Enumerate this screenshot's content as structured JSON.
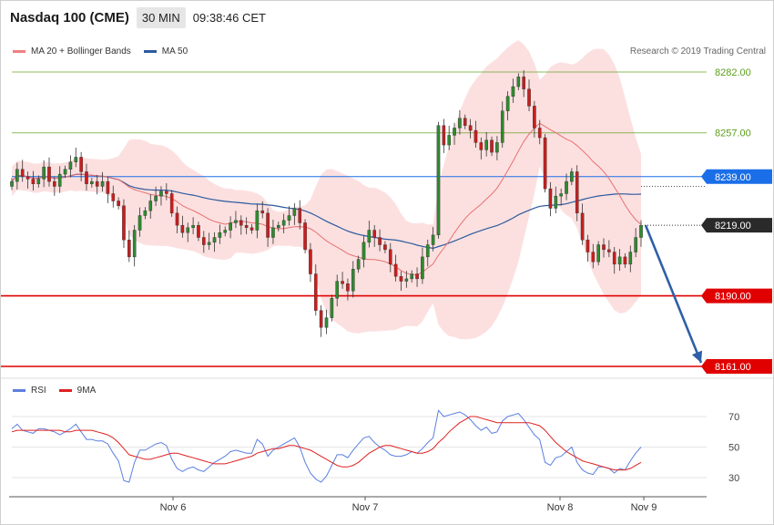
{
  "header": {
    "title": "Nasdaq 100 (CME)",
    "timeframe": "30 MIN",
    "time": "09:38:46 CET"
  },
  "legend": [
    {
      "label": "MA 20 + Bollinger Bands",
      "color": "#f08080"
    },
    {
      "label": "MA 50",
      "color": "#2c5a9e"
    }
  ],
  "copyright": "Research © 2019 Trading Central",
  "rsi_legend": [
    {
      "label": "RSI",
      "color": "#5b7fe0"
    },
    {
      "label": "9MA",
      "color": "#e02020"
    }
  ],
  "price_levels": [
    {
      "label": "8282.00",
      "value": 8282,
      "color": "#5a9e1a",
      "kind": "green",
      "badge": false
    },
    {
      "label": "8257.00",
      "value": 8257,
      "color": "#5a9e1a",
      "kind": "green",
      "badge": false
    },
    {
      "label": "8239.00",
      "value": 8239,
      "color": "#1a6fe8",
      "kind": "blue",
      "badge": true
    },
    {
      "label": "8219.00",
      "value": 8219,
      "color": "#2a2a2a",
      "kind": "current",
      "badge": true
    },
    {
      "label": "8190.00",
      "value": 8190,
      "color": "#e00000",
      "kind": "red",
      "badge": true
    },
    {
      "label": "8161.00",
      "value": 8161,
      "color": "#e00000",
      "kind": "red",
      "badge": true
    }
  ],
  "rsi_ticks": [
    "70",
    "50",
    "30"
  ],
  "x_labels": [
    "Nov 6",
    "Nov 7",
    "Nov 8",
    "Nov 9"
  ],
  "chart_data": {
    "type": "candlestick",
    "ylim": [
      8160,
      8290
    ],
    "rsi_ylim": [
      20,
      80
    ],
    "x_labels": [
      "Nov 6",
      "Nov 7",
      "Nov 8",
      "Nov 9"
    ],
    "projection": {
      "from": 8219,
      "to": 8161
    },
    "closes": [
      8237,
      8242,
      8239,
      8238,
      8236,
      8238,
      8243,
      8237,
      8235,
      8240,
      8242,
      8245,
      8247,
      8241,
      8236,
      8237,
      8235,
      8237,
      8232,
      8229,
      8227,
      8213,
      8206,
      8217,
      8223,
      8225,
      8229,
      8231,
      8233,
      8232,
      8224,
      8219,
      8216,
      8218,
      8219,
      8214,
      8211,
      8212,
      8214,
      8216,
      8217,
      8220,
      8221,
      8219,
      8218,
      8217,
      8225,
      8224,
      8214,
      8218,
      8219,
      8221,
      8223,
      8226,
      8220,
      8209,
      8199,
      8184,
      8177,
      8181,
      8189,
      8196,
      8195,
      8192,
      8201,
      8205,
      8212,
      8217,
      8214,
      8211,
      8209,
      8203,
      8198,
      8196,
      8197,
      8199,
      8197,
      8206,
      8211,
      8215,
      8260,
      8252,
      8256,
      8259,
      8263,
      8260,
      8258,
      8253,
      8250,
      8254,
      8249,
      8253,
      8266,
      8272,
      8276,
      8280,
      8275,
      8268,
      8259,
      8255,
      8234,
      8226,
      8231,
      8232,
      8237,
      8241,
      8224,
      8213,
      8208,
      8204,
      8211,
      8209,
      8208,
      8203,
      8206,
      8203,
      8208,
      8214,
      8219
    ],
    "rsi": [
      62,
      65,
      61,
      60,
      59,
      62,
      62,
      61,
      60,
      58,
      60,
      62,
      65,
      60,
      55,
      55,
      54,
      54,
      52,
      46,
      41,
      28,
      27,
      40,
      48,
      48,
      50,
      52,
      53,
      51,
      42,
      36,
      34,
      36,
      37,
      35,
      34,
      37,
      40,
      42,
      44,
      47,
      48,
      47,
      46,
      46,
      55,
      52,
      44,
      48,
      50,
      52,
      54,
      56,
      50,
      40,
      33,
      29,
      27,
      31,
      38,
      45,
      45,
      43,
      48,
      52,
      56,
      57,
      53,
      50,
      48,
      45,
      44,
      44,
      45,
      47,
      46,
      49,
      53,
      56,
      74,
      70,
      71,
      72,
      73,
      71,
      68,
      64,
      61,
      63,
      59,
      60,
      67,
      70,
      71,
      72,
      68,
      63,
      58,
      55,
      40,
      38,
      43,
      44,
      47,
      50,
      40,
      35,
      33,
      32,
      37,
      37,
      36,
      33,
      36,
      35,
      41,
      46,
      50
    ],
    "rsi_ma": [
      60,
      61,
      61,
      61,
      61,
      61,
      61,
      61,
      61,
      61,
      60,
      60,
      61,
      61,
      61,
      61,
      60,
      59,
      58,
      56,
      53,
      49,
      45,
      44,
      43,
      42,
      42,
      43,
      44,
      45,
      46,
      46,
      45,
      44,
      43,
      42,
      41,
      40,
      39,
      39,
      39,
      40,
      41,
      42,
      43,
      44,
      46,
      47,
      48,
      49,
      49,
      50,
      51,
      51,
      50,
      49,
      48,
      46,
      44,
      42,
      40,
      38,
      37,
      37,
      38,
      40,
      43,
      46,
      48,
      50,
      51,
      51,
      50,
      49,
      48,
      47,
      46,
      46,
      47,
      49,
      53,
      56,
      60,
      63,
      66,
      68,
      70,
      70,
      69,
      68,
      67,
      66,
      66,
      66,
      66,
      66,
      66,
      66,
      65,
      64,
      61,
      57,
      53,
      50,
      47,
      45,
      43,
      41,
      40,
      39,
      38,
      37,
      36,
      35,
      35,
      35,
      36,
      38,
      40
    ]
  }
}
